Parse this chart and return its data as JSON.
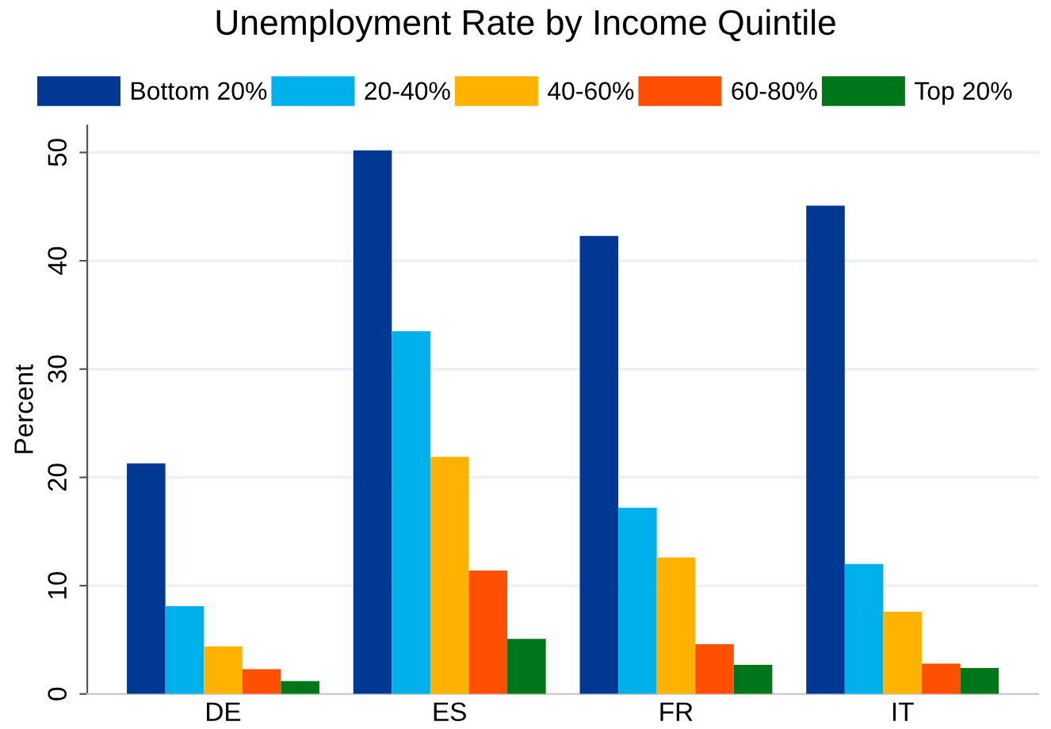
{
  "chart_data": {
    "type": "bar",
    "title": "Unemployment Rate by Income Quintile",
    "ylabel": "Percent",
    "categories": [
      "DE",
      "ES",
      "FR",
      "IT"
    ],
    "series": [
      {
        "name": "Bottom 20%",
        "color": "#003893",
        "values": [
          21.3,
          50.2,
          42.3,
          45.1
        ]
      },
      {
        "name": "20-40%",
        "color": "#00b0eb",
        "values": [
          8.1,
          33.5,
          17.2,
          12.0
        ]
      },
      {
        "name": "40-60%",
        "color": "#ffb300",
        "values": [
          4.4,
          21.9,
          12.6,
          7.6
        ]
      },
      {
        "name": "60-80%",
        "color": "#ff4f00",
        "values": [
          2.3,
          11.4,
          4.6,
          2.8
        ]
      },
      {
        "name": "Top 20%",
        "color": "#00761a",
        "values": [
          1.2,
          5.1,
          2.7,
          2.4
        ]
      }
    ],
    "ylim": [
      0,
      52.5
    ],
    "yticks": [
      0,
      10,
      20,
      30,
      40,
      50
    ],
    "grid": "y",
    "legend": "top"
  }
}
